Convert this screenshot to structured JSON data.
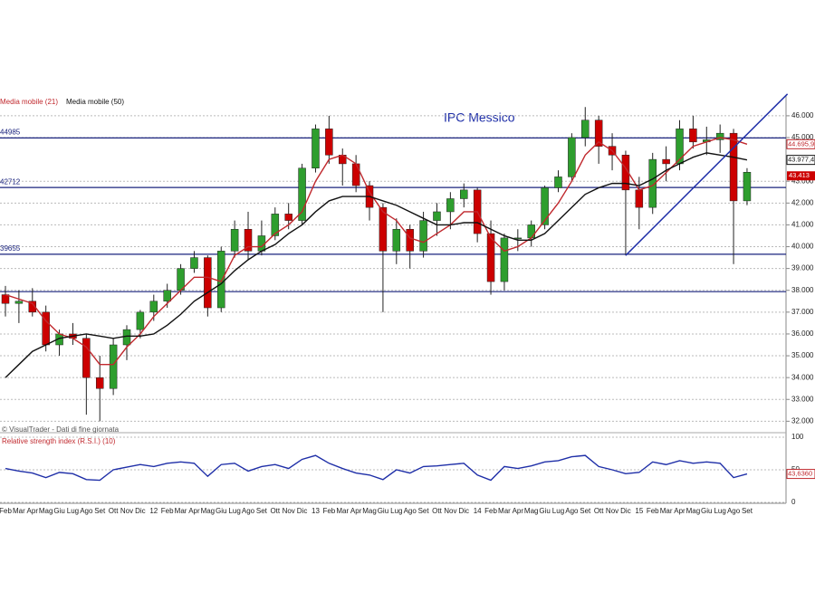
{
  "chart_data": {
    "type": "candlestick",
    "title": "IPC Messico",
    "watermark": "© VisualTrader - Dati di fine giornata",
    "categories": [
      "Feb",
      "Mar",
      "Apr",
      "Mag",
      "Giu",
      "Lug",
      "Ago",
      "Set",
      "Ott",
      "Nov",
      "Dic",
      "12",
      "Feb",
      "Mar",
      "Apr",
      "Mag",
      "Giu",
      "Lug",
      "Ago",
      "Set",
      "Ott",
      "Nov",
      "Dic",
      "13",
      "Feb",
      "Mar",
      "Apr",
      "Mag",
      "Giu",
      "Lug",
      "Ago",
      "Set",
      "Ott",
      "Nov",
      "Dic",
      "14",
      "Feb",
      "Mar",
      "Apr",
      "Mag",
      "Giu",
      "Lug",
      "Ago",
      "Set",
      "Ott",
      "Nov",
      "Dic",
      "15",
      "Feb",
      "Mar",
      "Apr",
      "Mag",
      "Giu",
      "Lug",
      "Ago",
      "Set"
    ],
    "open": [
      37800,
      37400,
      37500,
      37000,
      35500,
      36000,
      35800,
      34000,
      33500,
      35500,
      36200,
      37000,
      37500,
      38000,
      39000,
      39500,
      37200,
      39800,
      40800,
      39800,
      40500,
      41500,
      41200,
      43600,
      45400,
      44200,
      43800,
      42800,
      41800,
      39800,
      40800,
      39800,
      41200,
      41600,
      42200,
      42600,
      40600,
      38400,
      40400,
      40400,
      41000,
      42700,
      43200,
      45000,
      45800,
      44600,
      44200,
      42600,
      41800,
      44000,
      43800,
      45400,
      44800,
      44900,
      45200,
      42100
    ],
    "high": [
      38200,
      38000,
      38100,
      37300,
      36200,
      36500,
      36000,
      35000,
      35800,
      36400,
      37100,
      37800,
      38300,
      39200,
      39800,
      39600,
      40000,
      41200,
      41600,
      41200,
      41800,
      42000,
      43800,
      45600,
      46000,
      44500,
      44200,
      43000,
      42000,
      41300,
      41000,
      41600,
      42000,
      42500,
      42900,
      42700,
      41200,
      40600,
      40800,
      41200,
      42800,
      43500,
      45200,
      46400,
      46000,
      45200,
      44400,
      43200,
      44300,
      44600,
      45800,
      46000,
      45500,
      45600,
      45400,
      43600
    ],
    "low": [
      36800,
      36500,
      36800,
      35200,
      35000,
      35500,
      32300,
      32000,
      33200,
      34800,
      35800,
      36600,
      37200,
      37800,
      38800,
      36800,
      37000,
      39500,
      39400,
      39600,
      40300,
      40800,
      41000,
      43400,
      43800,
      42800,
      42500,
      41200,
      37000,
      39200,
      39000,
      39500,
      40500,
      40800,
      41800,
      40200,
      37800,
      38000,
      39800,
      40000,
      40800,
      42500,
      43000,
      44600,
      43800,
      43500,
      39600,
      40800,
      41500,
      43000,
      43500,
      44500,
      44200,
      44300,
      39200,
      41900
    ],
    "close": [
      37400,
      37500,
      37000,
      35500,
      36000,
      35800,
      34000,
      33500,
      35500,
      36200,
      37000,
      37500,
      38000,
      39000,
      39500,
      37200,
      39800,
      40800,
      39800,
      40500,
      41500,
      41200,
      43600,
      45400,
      44200,
      43800,
      42800,
      41800,
      39800,
      40800,
      39800,
      41200,
      41600,
      42200,
      42600,
      40600,
      38400,
      40400,
      40400,
      41000,
      42700,
      43200,
      45000,
      45800,
      44600,
      44200,
      42600,
      41800,
      44000,
      43800,
      45400,
      44800,
      44900,
      45200,
      42100,
      43413
    ],
    "last_label": "43.413",
    "up_color": "#2e9e2e",
    "down_color": "#cc0000",
    "moving_averages": [
      {
        "name": "Media mobile (21)",
        "color": "#c0282d",
        "last_label": "44.695,9",
        "values": [
          37800,
          37600,
          37400,
          36600,
          36000,
          35800,
          35400,
          34600,
          34600,
          35400,
          36000,
          36800,
          37400,
          38000,
          38600,
          38600,
          38400,
          39600,
          40000,
          40000,
          40600,
          41000,
          41600,
          43000,
          44000,
          44200,
          43800,
          42500,
          41600,
          41200,
          40400,
          40200,
          40600,
          41000,
          41600,
          41600,
          40400,
          39800,
          40000,
          40400,
          41200,
          42000,
          43000,
          44200,
          44800,
          44400,
          43600,
          42600,
          42800,
          43400,
          44000,
          44600,
          44800,
          45000,
          44900,
          44695.9
        ]
      },
      {
        "name": "Media mobile (50)",
        "color": "#111111",
        "last_label": "43.977,4",
        "values": [
          34000,
          34600,
          35200,
          35500,
          35800,
          35900,
          36000,
          35900,
          35800,
          35900,
          35900,
          36000,
          36400,
          36900,
          37500,
          37900,
          38300,
          38900,
          39400,
          39800,
          40100,
          40600,
          41000,
          41600,
          42100,
          42300,
          42300,
          42300,
          42100,
          41900,
          41600,
          41300,
          41000,
          41000,
          41100,
          41100,
          40800,
          40500,
          40300,
          40300,
          40600,
          41200,
          41800,
          42400,
          42700,
          42900,
          42900,
          42800,
          43100,
          43500,
          43800,
          44100,
          44300,
          44200,
          44100,
          43977.4
        ]
      }
    ],
    "ylim": [
      31600,
      46950
    ],
    "yticks": [
      {
        "value": 32000,
        "label": "32.000"
      },
      {
        "value": 33000,
        "label": "33.000"
      },
      {
        "value": 34000,
        "label": "34.000"
      },
      {
        "value": 35000,
        "label": "35.000"
      },
      {
        "value": 36000,
        "label": "36.000"
      },
      {
        "value": 37000,
        "label": "37.000"
      },
      {
        "value": 38000,
        "label": "38.000"
      },
      {
        "value": 39000,
        "label": "39.000"
      },
      {
        "value": 40000,
        "label": "40.000"
      },
      {
        "value": 41000,
        "label": "41.000"
      },
      {
        "value": 42000,
        "label": "42.000"
      },
      {
        "value": 43000,
        "label": "43.000"
      },
      {
        "value": 45000,
        "label": "45.000"
      },
      {
        "value": 46000,
        "label": "46.000"
      }
    ],
    "grid": true,
    "levels": [
      44985,
      42712,
      39655
    ],
    "unlabeled_levels": [
      37940
    ],
    "level_color": "#1a237e",
    "trendline": {
      "x": [
        46,
        58
      ],
      "y": [
        39600,
        47000
      ],
      "color": "#1f2fa8"
    },
    "rsi": {
      "title": "Relative strength index (R.S.I.) (10)",
      "color": "#1f2fa8",
      "last_label": "43,6360",
      "values": [
        52,
        48,
        45,
        38,
        46,
        44,
        35,
        34,
        50,
        54,
        58,
        55,
        60,
        62,
        60,
        40,
        58,
        60,
        48,
        55,
        58,
        52,
        66,
        72,
        60,
        52,
        45,
        42,
        35,
        50,
        45,
        55,
        56,
        58,
        60,
        42,
        34,
        55,
        52,
        56,
        62,
        64,
        70,
        72,
        55,
        50,
        44,
        46,
        62,
        58,
        64,
        60,
        62,
        60,
        38,
        43.636
      ],
      "ylim": [
        0,
        100
      ],
      "yticks": [
        0,
        50,
        100
      ]
    }
  }
}
